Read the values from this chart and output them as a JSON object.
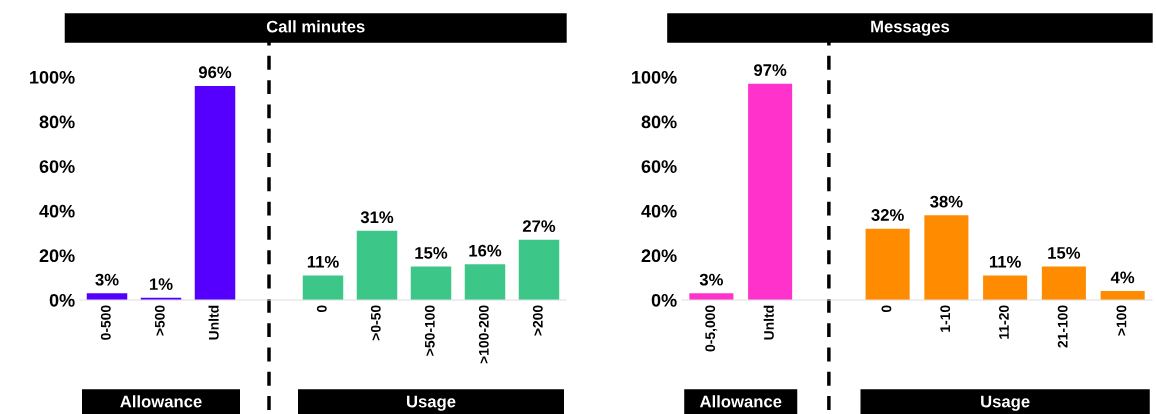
{
  "chart_data": [
    {
      "type": "bar",
      "title": "Call minutes",
      "categories": [
        "0-500",
        ">500",
        "Unltd",
        null,
        "0",
        ">0-50",
        ">50-100",
        ">100-200",
        ">200"
      ],
      "values": [
        3,
        1,
        96,
        null,
        11,
        31,
        15,
        16,
        27
      ],
      "colors": [
        "#5500ff",
        "#5500ff",
        "#5500ff",
        null,
        "#3cc687",
        "#3cc687",
        "#3cc687",
        "#3cc687",
        "#3cc687"
      ],
      "ylim": [
        0,
        100
      ],
      "yticks": [
        {
          "value": 0,
          "label": "0%"
        },
        {
          "value": 20,
          "label": "20%"
        },
        {
          "value": 40,
          "label": "40%"
        },
        {
          "value": 60,
          "label": "60%"
        },
        {
          "value": 80,
          "label": "80%"
        },
        {
          "value": 100,
          "label": "100%"
        }
      ],
      "value_labels": [
        "3%",
        "1%",
        "96%",
        null,
        "11%",
        "31%",
        "15%",
        "16%",
        "27%"
      ],
      "annotations": [
        "Allowance",
        "Usage"
      ]
    },
    {
      "type": "bar",
      "title": "Messages",
      "categories": [
        "0-5,000",
        "Unltd",
        null,
        "0",
        "1-10",
        "11-20",
        "21-100",
        ">100"
      ],
      "values": [
        3,
        97,
        null,
        32,
        38,
        11,
        15,
        4
      ],
      "colors": [
        "#ff33cc",
        "#ff33cc",
        null,
        "#ff8c00",
        "#ff8c00",
        "#ff8c00",
        "#ff8c00",
        "#ff8c00"
      ],
      "ylim": [
        0,
        100
      ],
      "yticks": [
        {
          "value": 0,
          "label": "0%"
        },
        {
          "value": 20,
          "label": "20%"
        },
        {
          "value": 40,
          "label": "40%"
        },
        {
          "value": 60,
          "label": "60%"
        },
        {
          "value": 80,
          "label": "80%"
        },
        {
          "value": 100,
          "label": "100%"
        }
      ],
      "value_labels": [
        "3%",
        "97%",
        null,
        "32%",
        "38%",
        "11%",
        "15%",
        "4%"
      ],
      "annotations": [
        "Allowance",
        "Usage"
      ]
    }
  ]
}
